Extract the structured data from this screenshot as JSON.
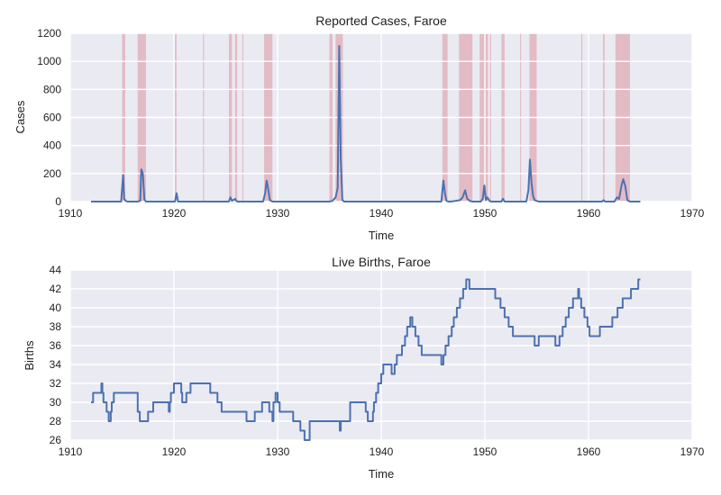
{
  "chart_data": [
    {
      "type": "line",
      "title": "Reported Cases, Faroe",
      "xlabel": "Time",
      "ylabel": "Cases",
      "xlim": [
        1910,
        1970
      ],
      "ylim": [
        0,
        1200
      ],
      "xticks": [
        1910,
        1920,
        1930,
        1940,
        1950,
        1960,
        1970
      ],
      "yticks": [
        0,
        200,
        400,
        600,
        800,
        1000,
        1200
      ],
      "grid": true,
      "line_color": "#4c72b0",
      "band_color": "#d98c97",
      "series": [
        {
          "x": [
            1912.0,
            1914.9,
            1915.1,
            1915.2,
            1915.35,
            1915.5,
            1916.5,
            1916.75,
            1916.85,
            1917.0,
            1917.15,
            1917.3,
            1920.1,
            1920.25,
            1920.4,
            1925.3,
            1925.45,
            1925.6,
            1925.9,
            1926.0,
            1926.15,
            1928.6,
            1928.8,
            1928.95,
            1929.1,
            1929.25,
            1929.5,
            1935.0,
            1935.3,
            1935.6,
            1935.8,
            1935.95,
            1936.1,
            1936.25,
            1936.45,
            1945.8,
            1946.0,
            1946.15,
            1946.3,
            1946.5,
            1946.7,
            1947.6,
            1947.85,
            1948.1,
            1948.3,
            1948.55,
            1948.8,
            1949.6,
            1949.8,
            1949.95,
            1950.1,
            1950.25,
            1950.45,
            1950.6,
            1951.6,
            1951.75,
            1951.9,
            1954.0,
            1954.2,
            1954.35,
            1954.5,
            1954.65,
            1954.8,
            1955.0,
            1955.2,
            1961.3,
            1961.45,
            1961.6,
            1962.5,
            1962.75,
            1962.95,
            1963.2,
            1963.35,
            1963.55,
            1963.75,
            1964.0,
            1965.0
          ],
          "y": [
            0,
            0,
            190,
            20,
            5,
            0,
            0,
            5,
            230,
            200,
            15,
            0,
            0,
            60,
            0,
            0,
            30,
            5,
            20,
            5,
            0,
            0,
            60,
            150,
            90,
            10,
            0,
            0,
            5,
            30,
            100,
            1110,
            300,
            10,
            0,
            0,
            150,
            60,
            5,
            0,
            0,
            10,
            30,
            80,
            20,
            5,
            0,
            0,
            20,
            115,
            10,
            30,
            5,
            0,
            0,
            20,
            0,
            0,
            80,
            300,
            130,
            40,
            10,
            5,
            0,
            0,
            10,
            0,
            0,
            30,
            20,
            120,
            160,
            110,
            10,
            0,
            0
          ]
        }
      ],
      "bands": [
        [
          1915.0,
          1915.3
        ],
        [
          1916.5,
          1917.3
        ],
        [
          1920.1,
          1920.25
        ],
        [
          1922.8,
          1922.9
        ],
        [
          1925.3,
          1925.6
        ],
        [
          1925.9,
          1926.1
        ],
        [
          1926.6,
          1926.7
        ],
        [
          1928.7,
          1929.5
        ],
        [
          1935.0,
          1935.3
        ],
        [
          1935.6,
          1936.3
        ],
        [
          1945.9,
          1946.4
        ],
        [
          1947.5,
          1948.8
        ],
        [
          1949.5,
          1950.3
        ],
        [
          1950.5,
          1950.6
        ],
        [
          1951.6,
          1951.9
        ],
        [
          1953.4,
          1953.5
        ],
        [
          1954.3,
          1955.0
        ],
        [
          1959.3,
          1959.4
        ],
        [
          1961.4,
          1961.55
        ],
        [
          1962.6,
          1964.0
        ]
      ]
    },
    {
      "type": "line",
      "title": "Live Births, Faroe",
      "xlabel": "Time",
      "ylabel": "Births",
      "xlim": [
        1910,
        1970
      ],
      "ylim": [
        26,
        44
      ],
      "xticks": [
        1910,
        1920,
        1930,
        1940,
        1950,
        1960,
        1970
      ],
      "yticks": [
        26,
        28,
        30,
        32,
        34,
        36,
        38,
        40,
        42,
        44
      ],
      "grid": true,
      "line_color": "#4c72b0",
      "series": [
        {
          "x": [
            1912.0,
            1912.2,
            1913.0,
            1913.1,
            1913.2,
            1913.5,
            1913.7,
            1913.9,
            1914.0,
            1914.2,
            1914.4,
            1915.0,
            1916.5,
            1916.7,
            1917.5,
            1918.0,
            1919.5,
            1919.6,
            1919.7,
            1920.0,
            1920.7,
            1920.8,
            1921.2,
            1921.6,
            1923.5,
            1924.2,
            1924.6,
            1927.0,
            1927.8,
            1928.5,
            1929.2,
            1929.5,
            1929.6,
            1929.8,
            1930.0,
            1930.2,
            1931.5,
            1932.2,
            1932.6,
            1933.0,
            1933.1,
            1933.8,
            1935.0,
            1936.0,
            1936.1,
            1936.2,
            1937.0,
            1938.5,
            1938.7,
            1939.2,
            1939.3,
            1939.5,
            1939.7,
            1940.0,
            1940.2,
            1941.0,
            1941.3,
            1941.5,
            1942.0,
            1942.3,
            1942.5,
            1942.8,
            1943.0,
            1943.3,
            1943.6,
            1943.9,
            1944.2,
            1945.8,
            1946.0,
            1946.2,
            1946.5,
            1946.8,
            1947.0,
            1947.3,
            1947.6,
            1947.9,
            1948.2,
            1948.5,
            1948.8,
            1949.0,
            1949.2,
            1951.0,
            1951.5,
            1951.9,
            1952.3,
            1952.7,
            1953.0,
            1954.8,
            1955.2,
            1956.5,
            1956.8,
            1957.2,
            1957.5,
            1957.8,
            1958.1,
            1958.5,
            1959.0,
            1959.1,
            1959.3,
            1959.6,
            1959.9,
            1960.1,
            1960.6,
            1961.1,
            1962.3,
            1962.8,
            1963.3,
            1963.8,
            1964.1,
            1964.3,
            1964.5,
            1964.8,
            1965.0
          ],
          "y": [
            30,
            31,
            32,
            31,
            30,
            29,
            28,
            29,
            30,
            31,
            31,
            31,
            29,
            28,
            29,
            30,
            29,
            30,
            31,
            32,
            31,
            30,
            31,
            32,
            31,
            30,
            29,
            28,
            29,
            30,
            29,
            28,
            30,
            31,
            30,
            29,
            28,
            27,
            26,
            26,
            28,
            28,
            28,
            27,
            28,
            28,
            30,
            29,
            28,
            29,
            30,
            31,
            32,
            33,
            34,
            33,
            34,
            35,
            36,
            37,
            38,
            39,
            38,
            37,
            36,
            35,
            35,
            34,
            35,
            36,
            37,
            38,
            39,
            40,
            41,
            42,
            43,
            42,
            42,
            42,
            42,
            41,
            40,
            39,
            38,
            37,
            37,
            36,
            37,
            37,
            36,
            37,
            38,
            39,
            40,
            41,
            42,
            41,
            40,
            39,
            38,
            37,
            37,
            38,
            39,
            40,
            41,
            41,
            42,
            42,
            42,
            43,
            43
          ]
        }
      ]
    }
  ]
}
